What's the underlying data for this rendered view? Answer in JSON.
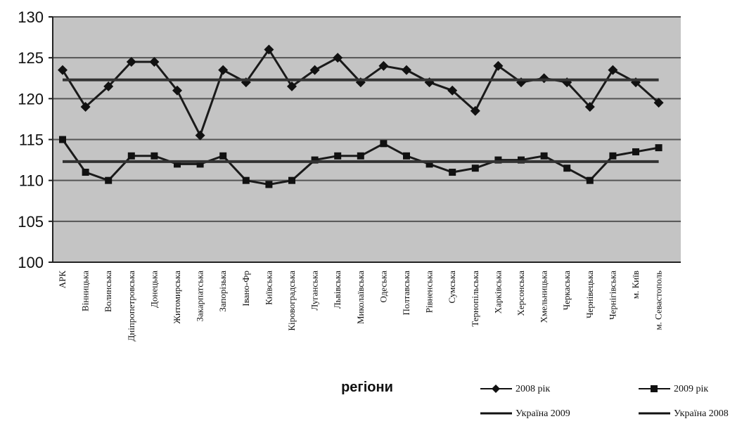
{
  "chart_data": {
    "type": "line",
    "title": "",
    "xlabel": "регіони",
    "ylabel": "",
    "ylim": [
      100,
      130
    ],
    "yticks": [
      100,
      105,
      110,
      115,
      120,
      125,
      130
    ],
    "grid": true,
    "legend_position": "bottom-right",
    "categories": [
      "АРК",
      "Вінницька",
      "Волинська",
      "Дніпропетровська",
      "Донецька",
      "Житомирська",
      "Закарпатська",
      "Запорізька",
      "Івано-Фр",
      "Київська",
      "Кіровоградська",
      "Луганська",
      "Львівська",
      "Миколаївська",
      "Одеська",
      "Полтавська",
      "Рівненська",
      "Сумська",
      "Тернопільська",
      "Харківська",
      "Херсонська",
      "Хмельницька",
      "Черкаська",
      "Чернівецька",
      "Чернігівська",
      "м. Київ",
      "м. Севастополь"
    ],
    "series": [
      {
        "name": "2008 рік",
        "marker": "diamond",
        "color": "#1a1a1a",
        "values": [
          123.5,
          119.0,
          121.5,
          124.5,
          124.5,
          121.0,
          115.5,
          123.5,
          122.0,
          126.0,
          121.5,
          123.5,
          125.0,
          122.0,
          124.0,
          123.5,
          122.0,
          121.0,
          118.5,
          124.0,
          122.0,
          122.5,
          122.0,
          119.0,
          123.5,
          122.0,
          119.5
        ]
      },
      {
        "name": "2009 рік",
        "marker": "square",
        "color": "#1a1a1a",
        "values": [
          115.0,
          111.0,
          110.0,
          113.0,
          113.0,
          112.0,
          112.0,
          113.0,
          110.0,
          109.5,
          110.0,
          112.5,
          113.0,
          113.0,
          114.5,
          113.0,
          112.0,
          111.0,
          111.5,
          112.5,
          112.5,
          113.0,
          111.5,
          110.0,
          113.0,
          113.5,
          114.0
        ]
      },
      {
        "name": "Україна 2009",
        "marker": "none",
        "color": "#333333",
        "values": [
          112.3,
          112.3,
          112.3,
          112.3,
          112.3,
          112.3,
          112.3,
          112.3,
          112.3,
          112.3,
          112.3,
          112.3,
          112.3,
          112.3,
          112.3,
          112.3,
          112.3,
          112.3,
          112.3,
          112.3,
          112.3,
          112.3,
          112.3,
          112.3,
          112.3,
          112.3,
          112.3
        ]
      },
      {
        "name": "Україна 2008",
        "marker": "none",
        "color": "#333333",
        "values": [
          122.3,
          122.3,
          122.3,
          122.3,
          122.3,
          122.3,
          122.3,
          122.3,
          122.3,
          122.3,
          122.3,
          122.3,
          122.3,
          122.3,
          122.3,
          122.3,
          122.3,
          122.3,
          122.3,
          122.3,
          122.3,
          122.3,
          122.3,
          122.3,
          122.3,
          122.3,
          122.3
        ]
      }
    ],
    "legend": [
      {
        "label": "2008 рік",
        "marker": "diamond"
      },
      {
        "label": "2009 рік",
        "marker": "square"
      },
      {
        "label": "Україна 2009",
        "marker": "none"
      },
      {
        "label": "Україна 2008",
        "marker": "none"
      }
    ],
    "plot_background": "#c4c4c4",
    "gridline_color": "#555555"
  }
}
